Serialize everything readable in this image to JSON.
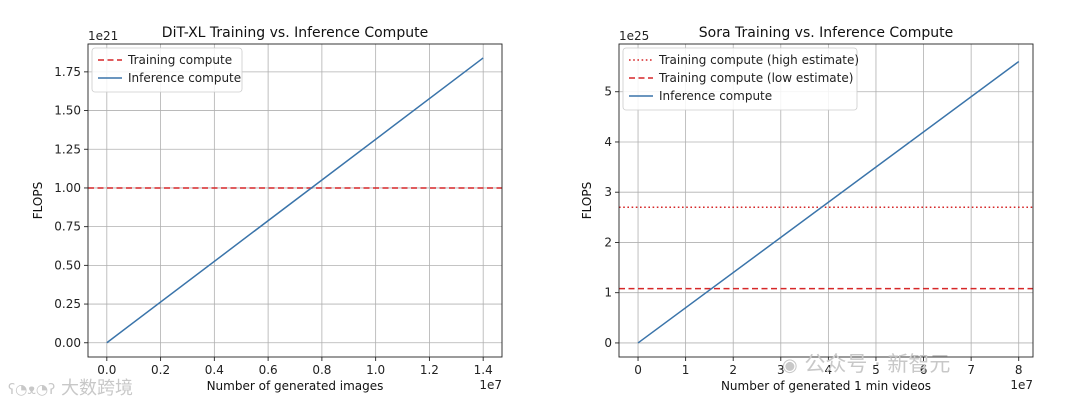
{
  "chart_data": [
    {
      "type": "line",
      "title": "DiT-XL Training vs. Inference Compute",
      "xlabel": "Number of generated images",
      "ylabel": "FLOPS",
      "x_offset_label": "1e7",
      "y_offset_label": "1e21",
      "xlim": [
        -0.07,
        1.47
      ],
      "ylim": [
        -0.092,
        1.93
      ],
      "xticks": [
        0.0,
        0.2,
        0.4,
        0.6,
        0.8,
        1.0,
        1.2,
        1.4
      ],
      "xtick_labels": [
        "0.0",
        "0.2",
        "0.4",
        "0.6",
        "0.8",
        "1.0",
        "1.2",
        "1.4"
      ],
      "yticks": [
        0.0,
        0.25,
        0.5,
        0.75,
        1.0,
        1.25,
        1.5,
        1.75
      ],
      "ytick_labels": [
        "0.00",
        "0.25",
        "0.50",
        "0.75",
        "1.00",
        "1.25",
        "1.50",
        "1.75"
      ],
      "grid": true,
      "legend_position": "top-left",
      "series": [
        {
          "name": "Training compute",
          "kind": "hline",
          "y": 1.0,
          "style": "dashed",
          "color": "#d62728"
        },
        {
          "name": "Inference compute",
          "kind": "line",
          "x": [
            0.0,
            1.4
          ],
          "y": [
            0.0,
            1.84
          ],
          "style": "solid",
          "color": "#3a74aa"
        }
      ]
    },
    {
      "type": "line",
      "title": "Sora Training vs. Inference Compute",
      "xlabel": "Number of generated 1 min videos",
      "ylabel": "FLOPS",
      "x_offset_label": "1e7",
      "y_offset_label": "1e25",
      "xlim": [
        -0.4,
        8.3
      ],
      "ylim": [
        -0.28,
        5.95
      ],
      "xticks": [
        0,
        1,
        2,
        3,
        4,
        5,
        6,
        7,
        8
      ],
      "xtick_labels": [
        "0",
        "1",
        "2",
        "3",
        "4",
        "5",
        "6",
        "7",
        "8"
      ],
      "yticks": [
        0,
        1,
        2,
        3,
        4,
        5
      ],
      "ytick_labels": [
        "0",
        "1",
        "2",
        "3",
        "4",
        "5"
      ],
      "grid": true,
      "legend_position": "top-left",
      "series": [
        {
          "name": "Training compute (high estimate)",
          "kind": "hline",
          "y": 2.7,
          "style": "dotted",
          "color": "#d62728"
        },
        {
          "name": "Training compute (low estimate)",
          "kind": "hline",
          "y": 1.08,
          "style": "dashed",
          "color": "#d62728"
        },
        {
          "name": "Inference compute",
          "kind": "line",
          "x": [
            0,
            8
          ],
          "y": [
            0,
            5.6
          ],
          "style": "solid",
          "color": "#3a74aa"
        }
      ]
    }
  ],
  "watermarks": {
    "left": "大数跨境",
    "right": "公众号 · 新智元"
  }
}
